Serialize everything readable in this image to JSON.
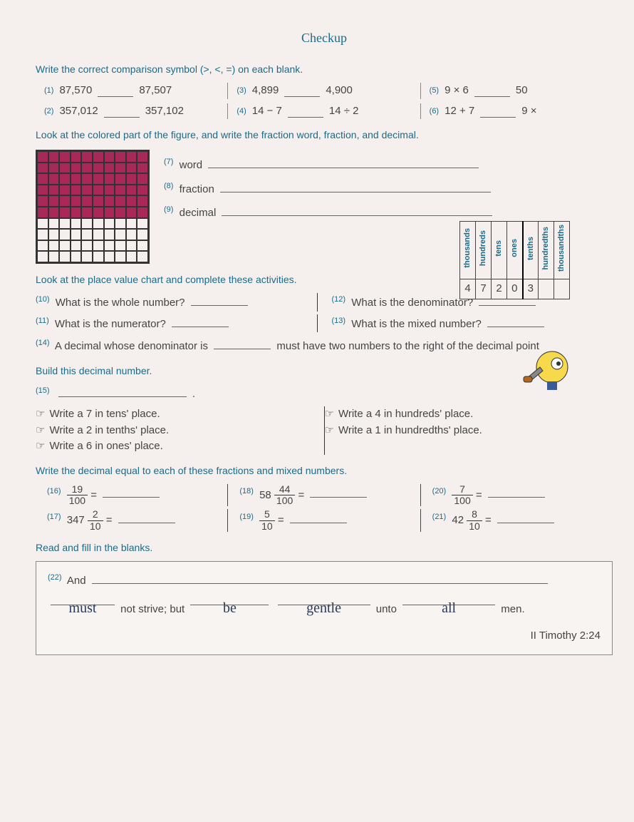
{
  "title": "Checkup",
  "sec1": {
    "instruction": "Write the correct comparison symbol (>, <, =) on each blank.",
    "q1": {
      "n": "(1)",
      "a": "87,570",
      "b": "87,507"
    },
    "q3": {
      "n": "(3)",
      "a": "4,899",
      "b": "4,900"
    },
    "q5": {
      "n": "(5)",
      "a": "9 × 6",
      "b": "50"
    },
    "q2": {
      "n": "(2)",
      "a": "357,012",
      "b": "357,102"
    },
    "q4": {
      "n": "(4)",
      "a": "14 − 7",
      "b": "14 ÷ 2"
    },
    "q6": {
      "n": "(6)",
      "a": "12 + 7",
      "b": "9 ×"
    }
  },
  "sec2": {
    "instruction": "Look at the colored part of the figure, and write the fraction word, fraction, and decimal.",
    "filled_rows": 6,
    "q7": {
      "n": "(7)",
      "label": "word"
    },
    "q8": {
      "n": "(8)",
      "label": "fraction"
    },
    "q9": {
      "n": "(9)",
      "label": "decimal"
    }
  },
  "pv": {
    "instruction": "Look at the place value chart and complete these activities.",
    "headers": [
      "thousands",
      "hundreds",
      "tens",
      "ones",
      "tenths",
      "hundredths",
      "thousandths"
    ],
    "values": [
      "4",
      "7",
      "2",
      "0",
      "3",
      "",
      ""
    ],
    "q10": {
      "n": "(10)",
      "t": "What is the whole number?"
    },
    "q12": {
      "n": "(12)",
      "t": "What is the denominator?"
    },
    "q11": {
      "n": "(11)",
      "t": "What is the numerator?"
    },
    "q13": {
      "n": "(13)",
      "t": "What is the mixed number?"
    },
    "q14": {
      "n": "(14)",
      "a": "A decimal whose denominator is",
      "b": "must have two numbers to the right of the decimal point"
    }
  },
  "build": {
    "instruction": "Build this decimal number.",
    "q15n": "(15)",
    "items": [
      "Write a 7 in tens' place.",
      "Write a 2 in tenths' place.",
      "Write a 6 in ones' place.",
      "Write a 4 in hundreds' place.",
      "Write a 1 in hundredths' place."
    ]
  },
  "dec": {
    "instruction": "Write the decimal equal to each of these fractions and mixed numbers.",
    "q16": {
      "n": "(16)",
      "whole": "",
      "num": "19",
      "den": "100"
    },
    "q18": {
      "n": "(18)",
      "whole": "58",
      "num": "44",
      "den": "100"
    },
    "q20": {
      "n": "(20)",
      "whole": "",
      "num": "7",
      "den": "100"
    },
    "q17": {
      "n": "(17)",
      "whole": "347",
      "num": "2",
      "den": "10"
    },
    "q19": {
      "n": "(19)",
      "whole": "",
      "num": "5",
      "den": "10"
    },
    "q21": {
      "n": "(21)",
      "whole": "42",
      "num": "8",
      "den": "10"
    }
  },
  "read": {
    "instruction": "Read and fill in the blanks.",
    "q22n": "(22)",
    "and": "And",
    "ans1": "must",
    "mid1": "not strive; but",
    "ans2": "be",
    "ans3": "gentle",
    "mid2": "unto",
    "ans4": "all",
    "mid3": "men.",
    "ref": "II Timothy 2:24"
  },
  "colors": {
    "heading": "#1a6b8a",
    "fill": "#a8285a",
    "text": "#444"
  }
}
